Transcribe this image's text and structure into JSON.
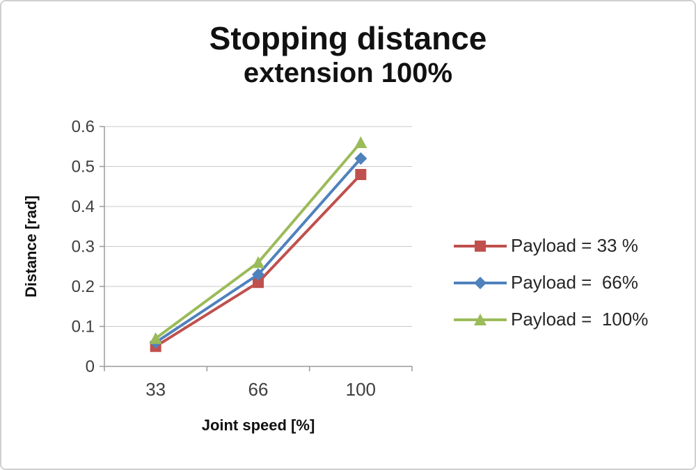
{
  "title": {
    "line1": "Stopping distance",
    "line2": "extension 100%"
  },
  "chart_data": {
    "type": "line",
    "title": "Stopping distance extension 100%",
    "xlabel": "Joint speed [%]",
    "ylabel": "Distance [rad]",
    "categories": [
      "33",
      "66",
      "100"
    ],
    "series": [
      {
        "name": "Payload = 33 %",
        "marker": "square",
        "color": "#c0504d",
        "values": [
          0.05,
          0.21,
          0.48
        ]
      },
      {
        "name": "Payload =  66%",
        "marker": "diamond",
        "color": "#4f81bd",
        "values": [
          0.06,
          0.23,
          0.52
        ]
      },
      {
        "name": "Payload =  100%",
        "marker": "triangle",
        "color": "#9bbb59",
        "values": [
          0.07,
          0.26,
          0.56
        ]
      }
    ],
    "ylim": [
      0,
      0.6
    ],
    "ytick_values": [
      0,
      0.1,
      0.2,
      0.3,
      0.4,
      0.5,
      0.6
    ],
    "ytick_labels": [
      "0",
      "0.1",
      "0.2",
      "0.3",
      "0.4",
      "0.5",
      "0.6"
    ],
    "grid": true,
    "legend_position": "right",
    "colors": {
      "gridline": "#c9c9c9",
      "axis": "#9a9a9a",
      "tick_text": "#3f3f3f",
      "axis_title_text": "#111111"
    }
  }
}
